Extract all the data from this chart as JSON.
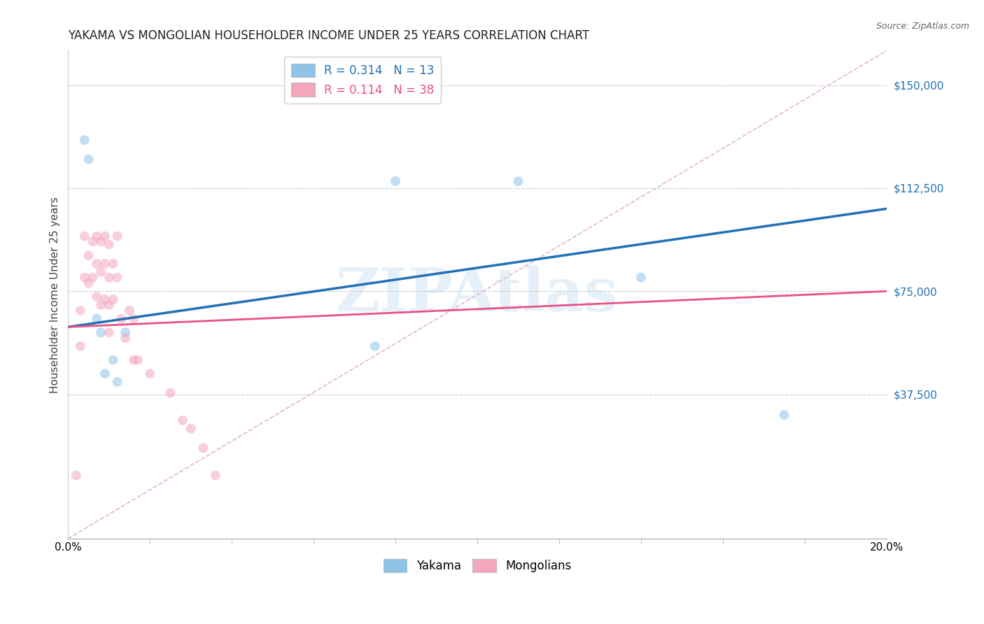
{
  "title": "YAKAMA VS MONGOLIAN HOUSEHOLDER INCOME UNDER 25 YEARS CORRELATION CHART",
  "source": "Source: ZipAtlas.com",
  "ylabel": "Householder Income Under 25 years",
  "xlim": [
    0.0,
    0.2
  ],
  "ylim": [
    -15000,
    162500
  ],
  "yticks": [
    37500,
    75000,
    112500,
    150000
  ],
  "ytick_labels": [
    "$37,500",
    "$75,000",
    "$112,500",
    "$150,000"
  ],
  "watermark_text": "ZIPAtlas",
  "yakama_color": "#8ec4e8",
  "mongolian_color": "#f4a7bc",
  "trendline_yakama_color": "#2171b5",
  "trendline_mongolian_color": "#e8508a",
  "trendline_ref_color": "#e8b4c8",
  "background_color": "#ffffff",
  "grid_color": "#cccccc",
  "ytick_color": "#2171b5",
  "yakama_x": [
    0.004,
    0.005,
    0.007,
    0.008,
    0.009,
    0.011,
    0.012,
    0.014,
    0.075,
    0.08,
    0.11,
    0.14,
    0.175
  ],
  "yakama_y": [
    130000,
    123000,
    65000,
    60000,
    45000,
    50000,
    42000,
    60000,
    55000,
    115000,
    115000,
    80000,
    30000
  ],
  "mongolian_x": [
    0.002,
    0.003,
    0.003,
    0.004,
    0.004,
    0.005,
    0.005,
    0.006,
    0.006,
    0.007,
    0.007,
    0.007,
    0.008,
    0.008,
    0.008,
    0.009,
    0.009,
    0.009,
    0.01,
    0.01,
    0.01,
    0.01,
    0.011,
    0.011,
    0.012,
    0.012,
    0.013,
    0.014,
    0.015,
    0.016,
    0.016,
    0.017,
    0.02,
    0.025,
    0.028,
    0.03,
    0.033,
    0.036
  ],
  "mongolian_y": [
    8000,
    55000,
    68000,
    80000,
    95000,
    88000,
    78000,
    93000,
    80000,
    95000,
    85000,
    73000,
    93000,
    82000,
    70000,
    95000,
    85000,
    72000,
    92000,
    80000,
    70000,
    60000,
    85000,
    72000,
    95000,
    80000,
    65000,
    58000,
    68000,
    65000,
    50000,
    50000,
    45000,
    38000,
    28000,
    25000,
    18000,
    8000
  ],
  "marker_size": 100,
  "marker_alpha": 0.55,
  "title_fontsize": 12,
  "axis_fontsize": 11,
  "legend_fontsize": 12,
  "trendline_start_x": 0.0,
  "trendline_end_x": 0.2,
  "yakama_trend_y0": 62000,
  "yakama_trend_y1": 105000,
  "mongolian_trend_y0": 62000,
  "mongolian_trend_y1": 75000
}
